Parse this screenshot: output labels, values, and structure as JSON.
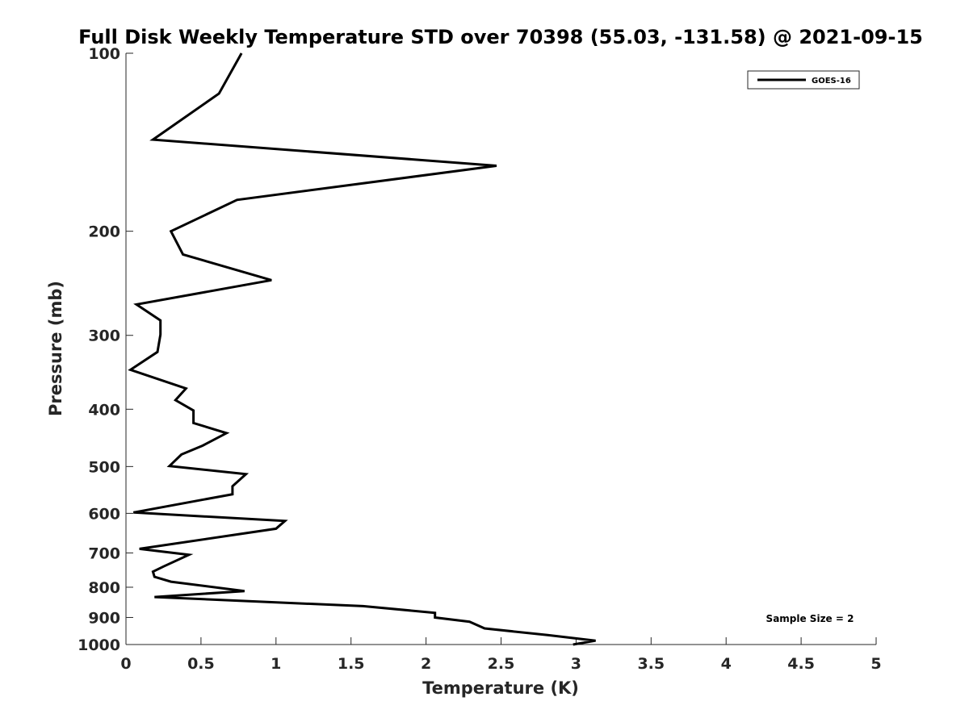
{
  "chart_data": {
    "type": "line",
    "title": "Full Disk Weekly Temperature STD over 70398 (55.03, -131.58) @ 2021-09-15",
    "xlabel": "Temperature (K)",
    "ylabel": "Pressure (mb)",
    "xlim": [
      0,
      5
    ],
    "ylim": [
      100,
      1000
    ],
    "y_scale": "log",
    "y_reversed": true,
    "x_ticks": [
      0,
      0.5,
      1,
      1.5,
      2,
      2.5,
      3,
      3.5,
      4,
      4.5,
      5
    ],
    "y_ticks": [
      100,
      200,
      300,
      400,
      500,
      600,
      700,
      800,
      900,
      1000
    ],
    "x_tick_labels": [
      "0",
      "0.5",
      "1",
      "1.5",
      "2",
      "2.5",
      "3",
      "3.5",
      "4",
      "4.5",
      "5"
    ],
    "y_tick_labels": [
      "100",
      "200",
      "300",
      "400",
      "500",
      "600",
      "700",
      "800",
      "900",
      "1000"
    ],
    "grid": false,
    "legend": {
      "placement": "top-right",
      "entries": [
        "GOES-16"
      ]
    },
    "annotation": "Sample Size = 2",
    "series": [
      {
        "name": "GOES-16",
        "color": "#000000",
        "points": [
          [
            0.77,
            100
          ],
          [
            0.62,
            117
          ],
          [
            0.18,
            140
          ],
          [
            2.47,
            155
          ],
          [
            0.74,
            177
          ],
          [
            0.3,
            200
          ],
          [
            0.38,
            219
          ],
          [
            0.97,
            242
          ],
          [
            0.07,
            266
          ],
          [
            0.23,
            283
          ],
          [
            0.23,
            299
          ],
          [
            0.21,
            320
          ],
          [
            0.03,
            343
          ],
          [
            0.4,
            369
          ],
          [
            0.33,
            386
          ],
          [
            0.45,
            402
          ],
          [
            0.45,
            422
          ],
          [
            0.67,
            439
          ],
          [
            0.51,
            461
          ],
          [
            0.37,
            477
          ],
          [
            0.29,
            499
          ],
          [
            0.8,
            515
          ],
          [
            0.71,
            540
          ],
          [
            0.71,
            557
          ],
          [
            0.05,
            598
          ],
          [
            1.06,
            618
          ],
          [
            1.0,
            637
          ],
          [
            0.09,
            689
          ],
          [
            0.42,
            705
          ],
          [
            0.25,
            738
          ],
          [
            0.18,
            753
          ],
          [
            0.19,
            768
          ],
          [
            0.3,
            783
          ],
          [
            0.79,
            812
          ],
          [
            0.19,
            831
          ],
          [
            1.58,
            861
          ],
          [
            2.06,
            884
          ],
          [
            2.06,
            900
          ],
          [
            2.29,
            915
          ],
          [
            2.39,
            939
          ],
          [
            2.81,
            964
          ],
          [
            3.13,
            985
          ],
          [
            2.98,
            1000
          ]
        ]
      }
    ]
  }
}
